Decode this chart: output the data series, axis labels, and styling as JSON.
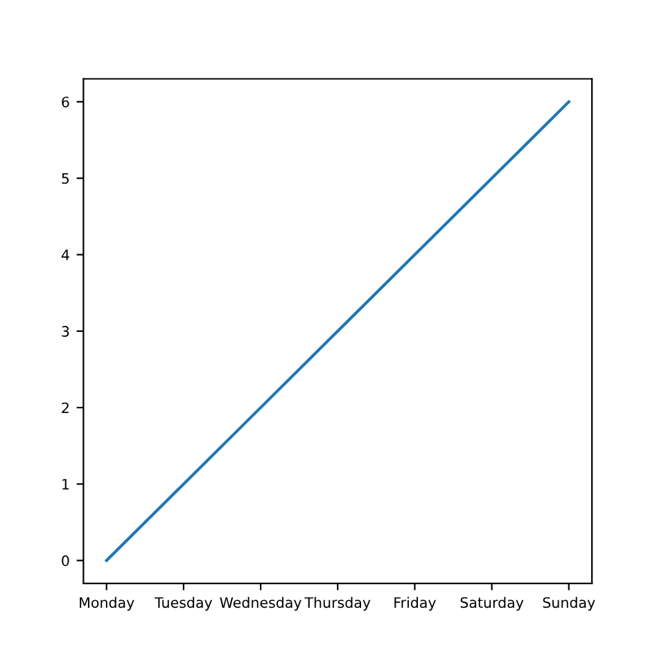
{
  "chart_data": {
    "type": "line",
    "categories": [
      "Monday",
      "Tuesday",
      "Wednesday",
      "Thursday",
      "Friday",
      "Saturday",
      "Sunday"
    ],
    "series": [
      {
        "color": "#1f77b4",
        "values": [
          0,
          1,
          2,
          3,
          4,
          5,
          6
        ]
      }
    ],
    "ylim": [
      -0.3,
      6.3
    ],
    "yticks": [
      0,
      1,
      2,
      3,
      4,
      5,
      6
    ],
    "grid": false,
    "marker": "none",
    "line_style": "solid"
  }
}
